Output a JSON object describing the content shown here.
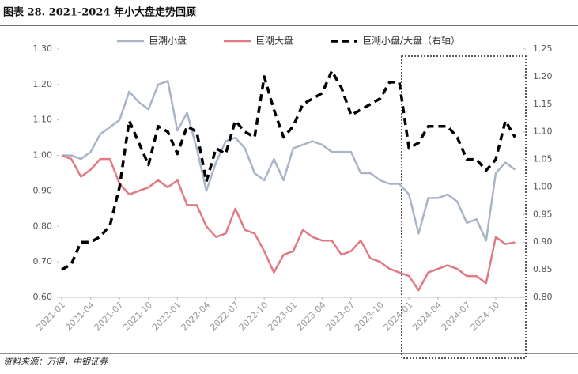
{
  "header": {
    "title": "图表 28. 2021-2024 年小大盘走势回顾"
  },
  "source": "资料来源：万得，中银证券",
  "chart_data": {
    "type": "line",
    "categories": [
      "2021-01",
      null,
      null,
      "2021-04",
      null,
      null,
      "2021-07",
      null,
      null,
      "2021-10",
      null,
      null,
      "2022-01",
      null,
      null,
      "2022-04",
      null,
      null,
      "2022-07",
      null,
      null,
      "2022-10",
      null,
      null,
      "2023-01",
      null,
      null,
      "2023-04",
      null,
      null,
      "2023-07",
      null,
      null,
      "2023-10",
      null,
      null,
      "2024-01",
      null,
      null,
      "2024-04",
      null,
      null,
      "2024-07",
      null,
      null,
      "2024-10",
      null,
      null
    ],
    "series": [
      {
        "name": "巨潮小盘",
        "color": "#a9b4c6",
        "values": [
          1.0,
          1.0,
          0.99,
          1.01,
          1.06,
          1.08,
          1.1,
          1.18,
          1.15,
          1.13,
          1.2,
          1.21,
          1.07,
          1.12,
          1.02,
          0.9,
          0.98,
          1.04,
          1.05,
          1.02,
          0.95,
          0.93,
          0.99,
          0.93,
          1.02,
          1.03,
          1.04,
          1.03,
          1.01,
          1.01,
          1.01,
          0.95,
          0.95,
          0.93,
          0.92,
          0.92,
          0.89,
          0.78,
          0.88,
          0.88,
          0.89,
          0.87,
          0.81,
          0.82,
          0.76,
          0.95,
          0.98,
          0.96
        ]
      },
      {
        "name": "巨潮大盘",
        "color": "#e07a84",
        "values": [
          1.0,
          0.99,
          0.94,
          0.96,
          0.99,
          0.99,
          0.92,
          0.89,
          0.9,
          0.91,
          0.93,
          0.91,
          0.93,
          0.86,
          0.86,
          0.8,
          0.77,
          0.78,
          0.85,
          0.79,
          0.78,
          0.73,
          0.67,
          0.72,
          0.73,
          0.79,
          0.77,
          0.76,
          0.76,
          0.72,
          0.73,
          0.76,
          0.71,
          0.7,
          0.68,
          0.67,
          0.66,
          0.62,
          0.67,
          0.68,
          0.69,
          0.68,
          0.66,
          0.66,
          0.64,
          0.77,
          0.75,
          0.755
        ]
      },
      {
        "name": "巨潮小盘/大盘（右轴）",
        "color": "#000000",
        "dashed": true,
        "axis": "y2",
        "values": [
          0.85,
          0.86,
          0.9,
          0.9,
          0.91,
          0.93,
          1.0,
          1.12,
          1.08,
          1.04,
          1.11,
          1.1,
          1.06,
          1.11,
          1.1,
          1.01,
          1.07,
          1.06,
          1.12,
          1.1,
          1.09,
          1.2,
          1.14,
          1.09,
          1.11,
          1.15,
          1.16,
          1.17,
          1.21,
          1.18,
          1.13,
          1.14,
          1.15,
          1.16,
          1.19,
          1.19,
          1.07,
          1.08,
          1.11,
          1.11,
          1.11,
          1.09,
          1.05,
          1.05,
          1.03,
          1.05,
          1.12,
          1.09
        ]
      }
    ],
    "ylim": [
      0.6,
      1.3
    ],
    "yticks": [
      {
        "value": 0.6,
        "label": "0.60"
      },
      {
        "value": 0.7,
        "label": "0.70"
      },
      {
        "value": 0.8,
        "label": "0.80"
      },
      {
        "value": 0.9,
        "label": "0.90"
      },
      {
        "value": 1.0,
        "label": "1.00"
      },
      {
        "value": 1.1,
        "label": "1.10"
      },
      {
        "value": 1.2,
        "label": "1.20"
      },
      {
        "value": 1.3,
        "label": "1.30"
      }
    ],
    "y2lim": [
      0.8,
      1.25
    ],
    "y2ticks": [
      {
        "value": 0.8,
        "label": "0.80"
      },
      {
        "value": 0.85,
        "label": "0.85"
      },
      {
        "value": 0.9,
        "label": "0.90"
      },
      {
        "value": 0.95,
        "label": "0.95"
      },
      {
        "value": 1.0,
        "label": "1.00"
      },
      {
        "value": 1.05,
        "label": "1.05"
      },
      {
        "value": 1.1,
        "label": "1.10"
      },
      {
        "value": 1.15,
        "label": "1.15"
      },
      {
        "value": 1.2,
        "label": "1.20"
      },
      {
        "value": 1.25,
        "label": "1.25"
      }
    ],
    "grid": false
  }
}
